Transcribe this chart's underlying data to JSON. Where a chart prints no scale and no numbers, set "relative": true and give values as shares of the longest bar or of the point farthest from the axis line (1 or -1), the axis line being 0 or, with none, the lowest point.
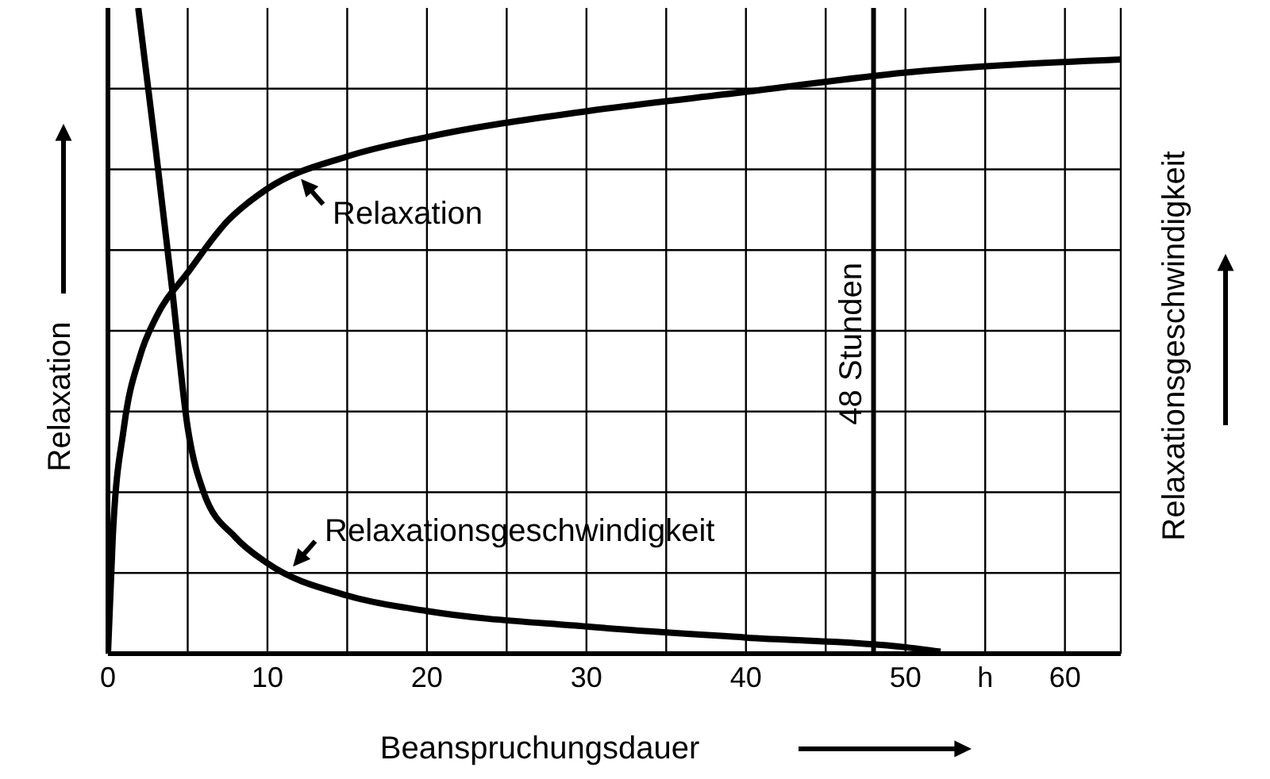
{
  "chart_data": {
    "type": "line",
    "relative": true,
    "xlabel": "Beanspruchungsdauer",
    "ylabel": "Relaxation",
    "y2label": "Relaxationsgeschwindigkeit",
    "xlim": [
      0,
      63.5
    ],
    "xticks": [
      0,
      {
        "value": 5,
        "label": null
      },
      10,
      {
        "value": 15,
        "label": null
      },
      20,
      {
        "value": 25,
        "label": null
      },
      30,
      {
        "value": 35,
        "label": null
      },
      40,
      {
        "value": 45,
        "label": null
      },
      50,
      {
        "value": 55,
        "label": "h"
      },
      60
    ],
    "series": [
      {
        "color": "#000000",
        "x": [
          0,
          0.3,
          1,
          2,
          3,
          5,
          7.5,
          10,
          15,
          20,
          30,
          40,
          50,
          63.5
        ],
        "values": [
          0,
          0.18,
          0.35,
          0.46,
          0.52,
          0.59,
          0.67,
          0.72,
          0.77,
          0.8,
          0.84,
          0.87,
          0.9,
          0.92
        ]
      },
      {
        "color": "#000000",
        "x": [
          1.9,
          3,
          4,
          5,
          6,
          8,
          10,
          15,
          20,
          30,
          40,
          50,
          52.2
        ],
        "values": [
          1,
          0.78,
          0.57,
          0.35,
          0.25,
          0.18,
          0.14,
          0.09,
          0.066,
          0.042,
          0.025,
          0.01,
          0.003
        ]
      }
    ],
    "ref_lines": [
      {
        "axis": "x",
        "value": 48,
        "label": "48 Stunden",
        "color": "#000000"
      }
    ],
    "annotations": [
      {
        "text": "Relaxation",
        "x": 11.9,
        "y": 0.745
      },
      {
        "text": "Relaxationsgeschwindigkeit",
        "x": 11.4,
        "y": 0.125
      }
    ],
    "grid": true,
    "legend": false,
    "marker": "none",
    "line_style": "solid"
  }
}
